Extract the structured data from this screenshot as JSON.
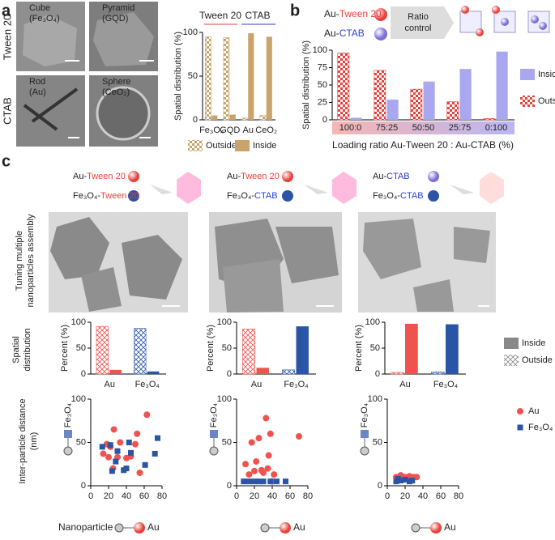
{
  "panel_a": {
    "label": "a",
    "row_labels": [
      "Tween 20",
      "CTAB"
    ],
    "images": [
      {
        "shape": "Cube",
        "material": "(Fe₃O₄)"
      },
      {
        "shape": "Pyramid",
        "material": "(GQD)"
      },
      {
        "shape": "Rod",
        "material": "(Au)"
      },
      {
        "shape": "Sphere",
        "material": "(CeO₂)"
      }
    ],
    "chart": {
      "type": "bar",
      "ylabel": "Spatial distribution (%)",
      "group_labels": [
        "Tween 20",
        "CTAB"
      ],
      "categories": [
        "Fe₃O₄",
        "GQD",
        "Au",
        "CeO₂"
      ],
      "series": [
        {
          "name": "Outside",
          "color": "#c8a46a",
          "pattern": "checker",
          "values": [
            95,
            94,
            2,
            5
          ]
        },
        {
          "name": "Inside",
          "color": "#c8a46a",
          "values": [
            5,
            6,
            99,
            95
          ]
        }
      ],
      "ylim": [
        0,
        100
      ],
      "yticks": [
        0,
        50,
        100
      ]
    }
  },
  "panel_b": {
    "label": "b",
    "particles": [
      [
        "Au-",
        "Tween 20"
      ],
      [
        "Au-",
        "CTAB"
      ]
    ],
    "arrow_label": [
      "Ratio",
      "control"
    ],
    "chart": {
      "type": "bar",
      "ylabel": "Spatial distribution (%)",
      "xlabel": "Loading ratio Au-Tween 20 : Au-CTAB (%)",
      "categories": [
        "100:0",
        "75:25",
        "50:50",
        "25:75",
        "0:100"
      ],
      "series": [
        {
          "name": "Outside",
          "color": "#e8413c",
          "pattern": "checker",
          "values": [
            96,
            71,
            44,
            26,
            2
          ]
        },
        {
          "name": "Inside",
          "color": "#a9a7f0",
          "values": [
            3,
            29,
            55,
            73,
            98
          ]
        }
      ],
      "ylim": [
        0,
        100
      ],
      "yticks": [
        0,
        25,
        50,
        75,
        100
      ]
    }
  },
  "panel_c": {
    "label": "c",
    "row_labels": [
      [
        "Tuning multiple",
        "nanoparticles assembly"
      ],
      [
        "Spatial",
        "distribution"
      ],
      [
        "Inter-particle distance",
        "(nm)"
      ]
    ],
    "schemes": [
      [
        [
          "Au-",
          "Tween 20"
        ],
        [
          "Fe₃O₄-",
          "Tween 20"
        ]
      ],
      [
        [
          "Au-",
          "Tween 20"
        ],
        [
          "Fe₃O₄-",
          "CTAB"
        ]
      ],
      [
        [
          "Au-",
          "CTAB"
        ],
        [
          "Fe₃O₄-",
          "CTAB"
        ]
      ]
    ],
    "x_caption": "Nanoparticle",
    "distribution": [
      {
        "type": "bar",
        "ylabel": "Percent (%)",
        "categories": [
          "Au",
          "Fe₃O₄"
        ],
        "series": [
          {
            "name": "Outside",
            "colors": [
              "#f0524f",
              "#2a55a5"
            ],
            "legend_color": "#888888",
            "pattern": "hatch",
            "values": [
              92,
              88
            ]
          },
          {
            "name": "Inside",
            "colors": [
              "#f0524f",
              "#2a55a5"
            ],
            "legend_color": "#888888",
            "values": [
              8,
              5
            ]
          }
        ],
        "ylim": [
          0,
          100
        ],
        "yticks": [
          0,
          50,
          100
        ]
      },
      {
        "type": "bar",
        "ylabel": "Percent (%)",
        "categories": [
          "Au",
          "Fe₃O₄"
        ],
        "series": [
          {
            "name": "Outside",
            "colors": [
              "#f0524f",
              "#2a55a5"
            ],
            "legend_color": "#888888",
            "pattern": "hatch",
            "values": [
              87,
              8
            ]
          },
          {
            "name": "Inside",
            "colors": [
              "#f0524f",
              "#2a55a5"
            ],
            "legend_color": "#888888",
            "values": [
              12,
              92
            ]
          }
        ],
        "ylim": [
          0,
          100
        ],
        "yticks": [
          0,
          50,
          100
        ]
      },
      {
        "type": "bar",
        "ylabel": "Percent (%)",
        "categories": [
          "Au",
          "Fe₃O₄"
        ],
        "series": [
          {
            "name": "Outside",
            "colors": [
              "#f0524f",
              "#2a55a5"
            ],
            "legend_color": "#888888",
            "pattern": "hatch",
            "values": [
              3,
              4
            ]
          },
          {
            "name": "Inside",
            "colors": [
              "#f0524f",
              "#2a55a5"
            ],
            "legend_color": "#888888",
            "values": [
              97,
              96
            ]
          }
        ],
        "ylim": [
          0,
          100
        ],
        "yticks": [
          0,
          50,
          100
        ]
      }
    ],
    "distance": [
      {
        "type": "scatter",
        "ylabel": "Fe₃O₄",
        "xlabel": "Au",
        "series": [
          {
            "name": "Au",
            "color": "#f0524f",
            "x": [
              14,
              18,
              20,
              22,
              26,
              30,
              33,
              40,
              45,
              50,
              52,
              55,
              63,
              25
            ],
            "values": [
              37,
              48,
              33,
              45,
              65,
              33,
              50,
              32,
              34,
              48,
              60,
              15,
              82,
              20
            ]
          },
          {
            "name": "Fe₃O₄",
            "color": "#2a55a5",
            "x": [
              13,
              22,
              24,
              28,
              30,
              37,
              40,
              43,
              45,
              61,
              72,
              75
            ],
            "values": [
              45,
              47,
              17,
              28,
              40,
              18,
              20,
              50,
              38,
              24,
              37,
              55
            ]
          }
        ],
        "xlim": [
          0,
          80
        ],
        "xticks": [
          0,
          20,
          40,
          60,
          80
        ],
        "ylim": [
          0,
          100
        ],
        "yticks": [
          0,
          50,
          100
        ]
      },
      {
        "type": "scatter",
        "ylabel": "Fe₃O₄",
        "xlabel": "Au",
        "series": [
          {
            "name": "Au",
            "color": "#f0524f",
            "x": [
              10,
              14,
              17,
              20,
              22,
              25,
              28,
              30,
              33,
              35,
              36,
              38,
              40,
              42,
              70
            ],
            "values": [
              25,
              13,
              50,
              17,
              28,
              55,
              18,
              15,
              78,
              20,
              35,
              60,
              5,
              13,
              57
            ]
          },
          {
            "name": "Fe₃O₄",
            "color": "#2a55a5",
            "x": [
              8,
              14,
              20,
              25,
              30,
              38,
              45,
              55
            ],
            "values": [
              5,
              5,
              5,
              5,
              5,
              5,
              5,
              5
            ]
          }
        ],
        "xlim": [
          0,
          80
        ],
        "xticks": [
          0,
          20,
          40,
          60,
          80
        ],
        "ylim": [
          0,
          100
        ],
        "yticks": [
          0,
          50,
          100
        ]
      },
      {
        "type": "scatter",
        "ylabel": "Fe₃O₄",
        "xlabel": "Au",
        "series": [
          {
            "name": "Au",
            "color": "#f0524f",
            "x": [
              10,
              15,
              18,
              20,
              25,
              30,
              33
            ],
            "values": [
              10,
              12,
              8,
              10,
              11,
              10,
              10
            ]
          },
          {
            "name": "Fe₃O₄",
            "color": "#2a55a5",
            "x": [
              10,
              12,
              15,
              20,
              25,
              28
            ],
            "values": [
              5,
              8,
              6,
              7,
              5,
              6
            ]
          }
        ],
        "xlim": [
          0,
          80
        ],
        "xticks": [
          0,
          20,
          40,
          60,
          80
        ],
        "ylim": [
          0,
          100
        ],
        "yticks": [
          0,
          50,
          100
        ]
      }
    ]
  }
}
